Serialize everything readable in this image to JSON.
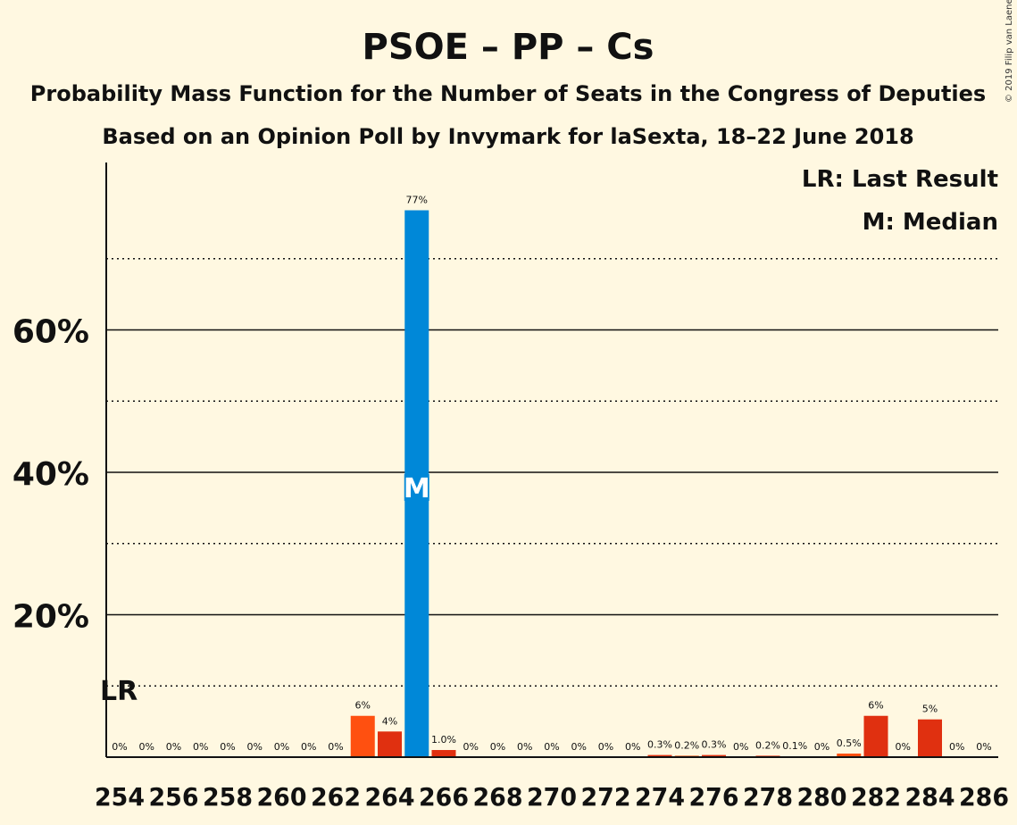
{
  "copyright": "© 2019 Filip van Laenen",
  "chart_data": {
    "type": "bar",
    "title": "PSOE – PP – Cs",
    "subtitle": "Probability Mass Function for the Number of Seats in the Congress of Deputies",
    "subtitle2": "Based on an Opinion Poll by Invymark for laSexta, 18–22 June 2018",
    "legend": [
      "LR: Last Result",
      "M: Median"
    ],
    "legend_position": "top-right",
    "last_result_marker": "LR",
    "last_result_seat": 254,
    "median_marker": "M",
    "median_seat": 265,
    "ylim": [
      0,
      80
    ],
    "yticks": [
      {
        "value": 20,
        "label": "20%"
      },
      {
        "value": 40,
        "label": "40%"
      },
      {
        "value": 60,
        "label": "60%"
      }
    ],
    "minor_gridlines": [
      10,
      30,
      50,
      70
    ],
    "xtick_labels": [
      "254",
      "256",
      "258",
      "260",
      "262",
      "264",
      "266",
      "268",
      "270",
      "272",
      "274",
      "276",
      "278",
      "280",
      "282",
      "284",
      "286"
    ],
    "seats": [
      254,
      255,
      256,
      257,
      258,
      259,
      260,
      261,
      262,
      263,
      264,
      265,
      266,
      267,
      268,
      269,
      270,
      271,
      272,
      273,
      274,
      275,
      276,
      277,
      278,
      279,
      280,
      281,
      282,
      283,
      284,
      285,
      286
    ],
    "values": [
      0,
      0,
      0,
      0,
      0,
      0,
      0,
      0,
      0,
      5.8,
      3.6,
      76.8,
      1.0,
      0,
      0,
      0,
      0,
      0,
      0,
      0,
      0.3,
      0.2,
      0.3,
      0,
      0.2,
      0.1,
      0,
      0.5,
      5.8,
      0,
      5.3,
      0,
      0
    ],
    "value_labels": [
      "0%",
      "0%",
      "0%",
      "0%",
      "0%",
      "0%",
      "0%",
      "0%",
      "0%",
      "6%",
      "4%",
      "77%",
      "1.0%",
      "0%",
      "0%",
      "0%",
      "0%",
      "0%",
      "0%",
      "0%",
      "0.3%",
      "0.2%",
      "0.3%",
      "0%",
      "0.2%",
      "0.1%",
      "0%",
      "0.5%",
      "6%",
      "0%",
      "5%",
      "0%",
      "0%"
    ],
    "colors": {
      "median_bar": "#0088d8",
      "bar_dark": "#e03010",
      "bar_light": "#ff5010",
      "background": "#fff8e1"
    }
  }
}
